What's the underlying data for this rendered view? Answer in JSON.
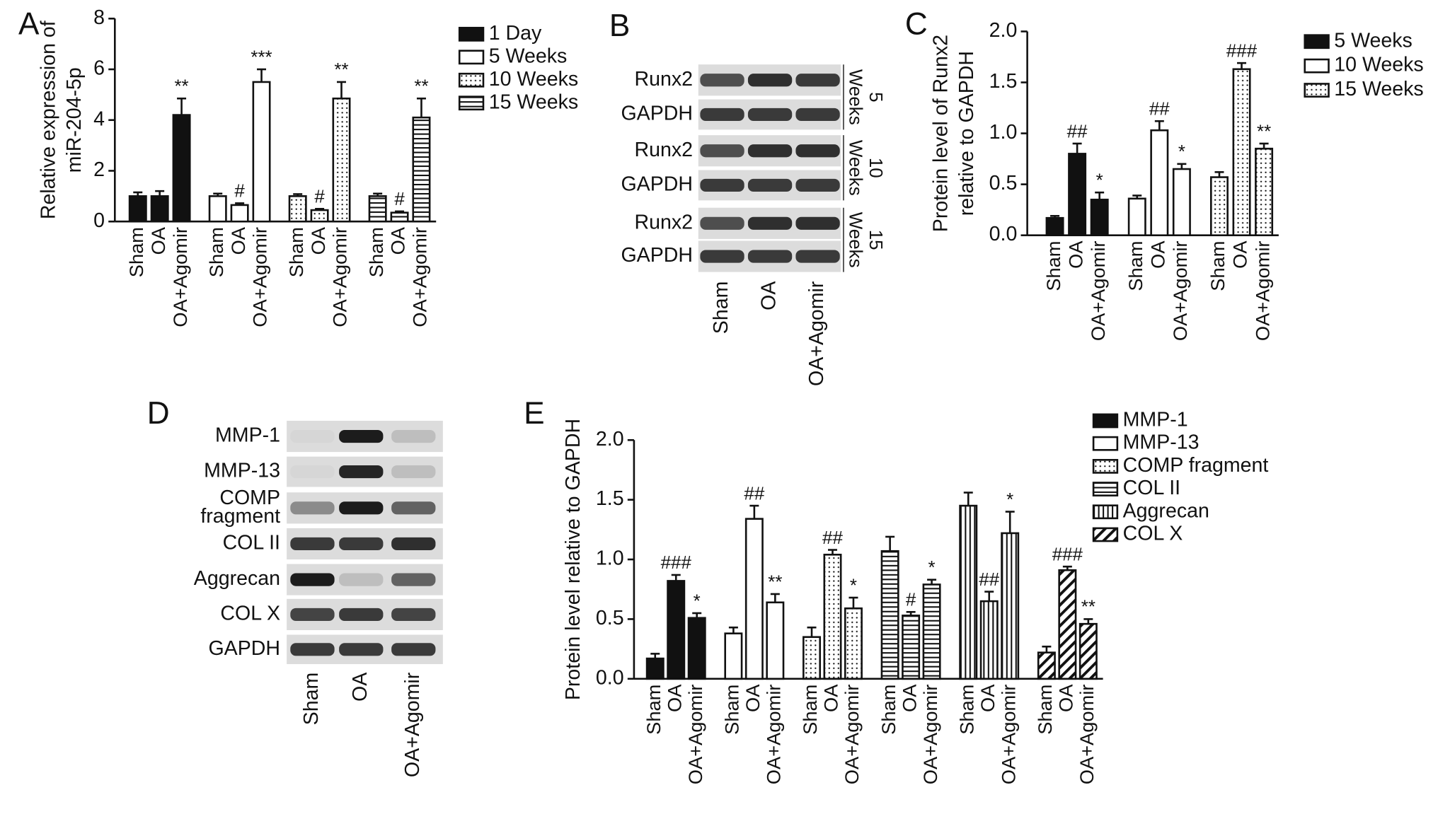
{
  "chart_data": [
    {
      "type": "bar",
      "label": "A",
      "ylabel": [
        "Relative expression of",
        "miR-204-5p"
      ],
      "categories": [
        "Sham",
        "OA",
        "OA+Agomir",
        "Sham",
        "OA",
        "OA+Agomir",
        "Sham",
        "OA",
        "OA+Agomir",
        "Sham",
        "OA",
        "OA+Agomir"
      ],
      "ylim": [
        0,
        8
      ],
      "yticks": [
        0,
        2,
        4,
        6,
        8
      ],
      "series": [
        {
          "name": "1 Day",
          "color": "#111111",
          "pattern": "solid",
          "values": [
            1.0,
            1.0,
            4.2,
            null,
            null,
            null,
            null,
            null,
            null,
            null,
            null,
            null
          ],
          "errors": [
            0.15,
            0.2,
            0.65,
            null,
            null,
            null,
            null,
            null,
            null,
            null,
            null,
            null
          ],
          "annotations": [
            null,
            null,
            "**",
            null,
            null,
            null,
            null,
            null,
            null,
            null,
            null,
            null
          ]
        },
        {
          "name": "5 Weeks",
          "color": "#111111",
          "pattern": "none",
          "values": [
            null,
            null,
            null,
            1.0,
            0.65,
            5.5,
            null,
            null,
            null,
            null,
            null,
            null
          ],
          "errors": [
            null,
            null,
            null,
            0.1,
            0.07,
            0.5,
            null,
            null,
            null,
            null,
            null,
            null
          ],
          "annotations": [
            null,
            null,
            null,
            null,
            "#",
            "***",
            null,
            null,
            null,
            null,
            null,
            null
          ]
        },
        {
          "name": "10 Weeks",
          "color": "#111111",
          "pattern": "dots",
          "values": [
            null,
            null,
            null,
            null,
            null,
            null,
            1.0,
            0.45,
            4.85,
            null,
            null,
            null
          ],
          "errors": [
            null,
            null,
            null,
            null,
            null,
            null,
            0.08,
            0.05,
            0.65,
            null,
            null,
            null
          ],
          "annotations": [
            null,
            null,
            null,
            null,
            null,
            null,
            null,
            "#",
            "**",
            null,
            null,
            null
          ]
        },
        {
          "name": "15 Weeks",
          "color": "#111111",
          "pattern": "hstripes",
          "values": [
            null,
            null,
            null,
            null,
            null,
            null,
            null,
            null,
            null,
            1.0,
            0.35,
            4.1
          ],
          "errors": [
            null,
            null,
            null,
            null,
            null,
            null,
            null,
            null,
            null,
            0.1,
            0.05,
            0.75
          ],
          "annotations": [
            null,
            null,
            null,
            null,
            null,
            null,
            null,
            null,
            null,
            null,
            "#",
            "**"
          ]
        }
      ]
    },
    {
      "type": "bar",
      "label": "C",
      "ylabel": [
        "Protein level of Runx2",
        "relative to GAPDH"
      ],
      "categories": [
        "Sham",
        "OA",
        "OA+Agomir",
        "Sham",
        "OA",
        "OA+Agomir",
        "Sham",
        "OA",
        "OA+Agomir"
      ],
      "ylim": [
        0,
        2
      ],
      "yticks": [
        {
          "value": 0,
          "label": "0.0"
        },
        {
          "value": 0.5,
          "label": "0.5"
        },
        {
          "value": 1,
          "label": "1.0"
        },
        {
          "value": 1.5,
          "label": "1.5"
        },
        {
          "value": 2,
          "label": "2.0"
        }
      ],
      "series": [
        {
          "name": "5 Weeks",
          "color": "#111111",
          "pattern": "solid",
          "values": [
            0.17,
            0.8,
            0.35,
            null,
            null,
            null,
            null,
            null,
            null
          ],
          "errors": [
            0.02,
            0.1,
            0.07,
            null,
            null,
            null,
            null,
            null,
            null
          ],
          "annotations": [
            null,
            "##",
            "*",
            null,
            null,
            null,
            null,
            null,
            null
          ]
        },
        {
          "name": "10 Weeks",
          "color": "#111111",
          "pattern": "none",
          "values": [
            null,
            null,
            null,
            0.36,
            1.03,
            0.65,
            null,
            null,
            null
          ],
          "errors": [
            null,
            null,
            null,
            0.03,
            0.09,
            0.05,
            null,
            null,
            null
          ],
          "annotations": [
            null,
            null,
            null,
            null,
            "##",
            "*",
            null,
            null,
            null
          ]
        },
        {
          "name": "15 Weeks",
          "color": "#111111",
          "pattern": "dots",
          "values": [
            null,
            null,
            null,
            null,
            null,
            null,
            0.57,
            1.63,
            0.85
          ],
          "errors": [
            null,
            null,
            null,
            null,
            null,
            null,
            0.05,
            0.06,
            0.05
          ],
          "annotations": [
            null,
            null,
            null,
            null,
            null,
            null,
            null,
            "###",
            "**"
          ]
        }
      ]
    },
    {
      "type": "bar",
      "label": "E",
      "ylabel": [
        "Protein level relative to GAPDH"
      ],
      "categories": [
        "Sham",
        "OA",
        "OA+Agomir",
        "Sham",
        "OA",
        "OA+Agomir",
        "Sham",
        "OA",
        "OA+Agomir",
        "Sham",
        "OA",
        "OA+Agomir",
        "Sham",
        "OA",
        "OA+Agomir",
        "Sham",
        "OA",
        "OA+Agomir"
      ],
      "ylim": [
        0,
        2
      ],
      "yticks": [
        {
          "value": 0,
          "label": "0.0"
        },
        {
          "value": 0.5,
          "label": "0.5"
        },
        {
          "value": 1,
          "label": "1.0"
        },
        {
          "value": 1.5,
          "label": "1.5"
        },
        {
          "value": 2,
          "label": "2.0"
        }
      ],
      "series": [
        {
          "name": "MMP-1",
          "color": "#111111",
          "pattern": "solid",
          "values": [
            0.17,
            0.82,
            0.51,
            null,
            null,
            null,
            null,
            null,
            null,
            null,
            null,
            null,
            null,
            null,
            null,
            null,
            null,
            null
          ],
          "errors": [
            0.04,
            0.05,
            0.04,
            null,
            null,
            null,
            null,
            null,
            null,
            null,
            null,
            null,
            null,
            null,
            null,
            null,
            null,
            null
          ],
          "annotations": [
            null,
            "###",
            "*",
            null,
            null,
            null,
            null,
            null,
            null,
            null,
            null,
            null,
            null,
            null,
            null,
            null,
            null,
            null
          ]
        },
        {
          "name": "MMP-13",
          "color": "#111111",
          "pattern": "none",
          "values": [
            null,
            null,
            null,
            0.38,
            1.34,
            0.64,
            null,
            null,
            null,
            null,
            null,
            null,
            null,
            null,
            null,
            null,
            null,
            null
          ],
          "errors": [
            null,
            null,
            null,
            0.05,
            0.11,
            0.07,
            null,
            null,
            null,
            null,
            null,
            null,
            null,
            null,
            null,
            null,
            null,
            null
          ],
          "annotations": [
            null,
            null,
            null,
            null,
            "##",
            "**",
            null,
            null,
            null,
            null,
            null,
            null,
            null,
            null,
            null,
            null,
            null,
            null
          ]
        },
        {
          "name": "COMP fragment",
          "color": "#111111",
          "pattern": "dots",
          "values": [
            null,
            null,
            null,
            null,
            null,
            null,
            0.35,
            1.04,
            0.59,
            null,
            null,
            null,
            null,
            null,
            null,
            null,
            null,
            null
          ],
          "errors": [
            null,
            null,
            null,
            null,
            null,
            null,
            0.08,
            0.04,
            0.09,
            null,
            null,
            null,
            null,
            null,
            null,
            null,
            null,
            null
          ],
          "annotations": [
            null,
            null,
            null,
            null,
            null,
            null,
            null,
            "##",
            "*",
            null,
            null,
            null,
            null,
            null,
            null,
            null,
            null,
            null
          ]
        },
        {
          "name": "COL II",
          "color": "#111111",
          "pattern": "hstripes",
          "values": [
            null,
            null,
            null,
            null,
            null,
            null,
            null,
            null,
            null,
            1.07,
            0.53,
            0.79,
            null,
            null,
            null,
            null,
            null,
            null
          ],
          "errors": [
            null,
            null,
            null,
            null,
            null,
            null,
            null,
            null,
            null,
            0.12,
            0.03,
            0.04,
            null,
            null,
            null,
            null,
            null,
            null
          ],
          "annotations": [
            null,
            null,
            null,
            null,
            null,
            null,
            null,
            null,
            null,
            null,
            "#",
            "*",
            null,
            null,
            null,
            null,
            null,
            null
          ]
        },
        {
          "name": "Aggrecan",
          "color": "#111111",
          "pattern": "vstripes",
          "values": [
            null,
            null,
            null,
            null,
            null,
            null,
            null,
            null,
            null,
            null,
            null,
            null,
            1.45,
            0.65,
            1.22,
            null,
            null,
            null
          ],
          "errors": [
            null,
            null,
            null,
            null,
            null,
            null,
            null,
            null,
            null,
            null,
            null,
            null,
            0.11,
            0.08,
            0.18,
            null,
            null,
            null
          ],
          "annotations": [
            null,
            null,
            null,
            null,
            null,
            null,
            null,
            null,
            null,
            null,
            null,
            null,
            null,
            "##",
            "*",
            null,
            null,
            null
          ]
        },
        {
          "name": "COL X",
          "color": "#111111",
          "pattern": "diag",
          "values": [
            null,
            null,
            null,
            null,
            null,
            null,
            null,
            null,
            null,
            null,
            null,
            null,
            null,
            null,
            null,
            0.22,
            0.91,
            0.46
          ],
          "errors": [
            null,
            null,
            null,
            null,
            null,
            null,
            null,
            null,
            null,
            null,
            null,
            null,
            null,
            null,
            null,
            0.05,
            0.03,
            0.04
          ],
          "annotations": [
            null,
            null,
            null,
            null,
            null,
            null,
            null,
            null,
            null,
            null,
            null,
            null,
            null,
            null,
            null,
            null,
            "###",
            "**"
          ]
        }
      ]
    }
  ],
  "blots": [
    {
      "label": "B",
      "rows": [
        [
          "Runx2"
        ],
        [
          "GAPDH"
        ],
        [
          "Runx2"
        ],
        [
          "GAPDH"
        ],
        [
          "Runx2"
        ],
        [
          "GAPDH"
        ]
      ],
      "sections": [
        [
          "5",
          "Weeks"
        ],
        [
          "10",
          "Weeks"
        ],
        [
          "15",
          "Weeks"
        ]
      ],
      "lanes": [
        "Sham",
        "OA",
        "OA+Agomir"
      ]
    },
    {
      "label": "D",
      "rows": [
        [
          "MMP-1"
        ],
        [
          "MMP-13"
        ],
        [
          "COMP",
          "fragment"
        ],
        [
          "COL II"
        ],
        [
          "Aggrecan"
        ],
        [
          "COL X"
        ],
        [
          "GAPDH"
        ]
      ],
      "lanes": [
        "Sham",
        "OA",
        "OA+Agomir"
      ]
    }
  ]
}
